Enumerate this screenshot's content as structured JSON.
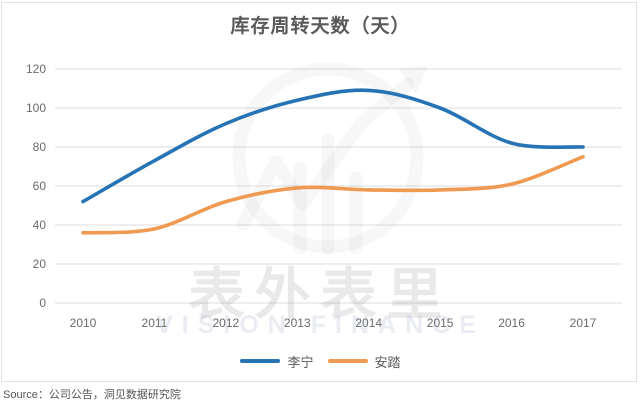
{
  "title": "库存周转天数（天）",
  "source": "Source：公司公告，洞见数据研究院",
  "watermark": {
    "cn": "表外表里",
    "en": "VISION FINANCE"
  },
  "colors": {
    "li_ning_blue": "#2673B5",
    "anta_orange": "#EF9A50",
    "gridline": "#DCDCDC",
    "title_text": "#595959",
    "axis_text": "#6B6B6B",
    "card_border": "#E3E3E3"
  },
  "chart_data": {
    "type": "line",
    "title": "库存周转天数（天）",
    "categories": [
      "2010",
      "2011",
      "2012",
      "2013",
      "2014",
      "2015",
      "2016",
      "2017"
    ],
    "series": [
      {
        "name": "李宁",
        "color": "#2673B5",
        "values": [
          52,
          73,
          92,
          104,
          109,
          100,
          82,
          80
        ]
      },
      {
        "name": "安踏",
        "color": "#EF9A50",
        "values": [
          36,
          38,
          52,
          59,
          58,
          58,
          61,
          75
        ]
      }
    ],
    "xlabel": "",
    "ylabel": "",
    "ylim": [
      0,
      120
    ],
    "ytick_step": 20,
    "grid": true,
    "smooth": true,
    "legend_position": "bottom"
  }
}
